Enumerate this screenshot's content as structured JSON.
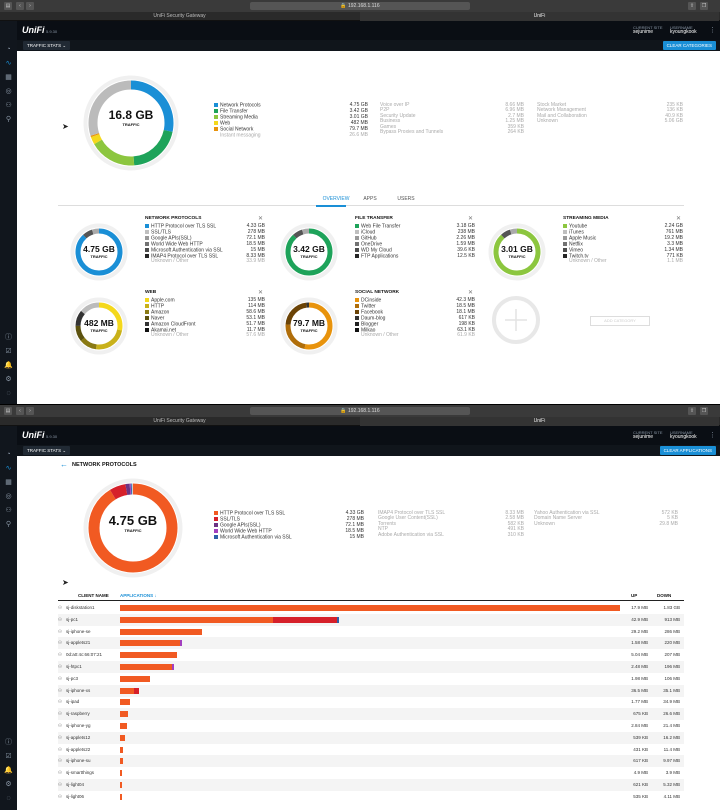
{
  "browser": {
    "address": "192.168.1.116",
    "tabs": [
      "UniFi Security Gateway",
      "UniFi"
    ]
  },
  "app": {
    "brand": "UniFi",
    "version": "5.9.30",
    "current_site_label": "CURRENT SITE",
    "current_site": "sejunime",
    "username_label": "USERNAME",
    "username": "kyoungkook"
  },
  "toolbar": {
    "traffic_stats": "TRAFFIC STATS",
    "clear_categories": "CLEAR CATEGORIES",
    "clear_applications": "CLEAR APPLICATIONS"
  },
  "overview": {
    "total": "16.8 GB",
    "total_label": "TRAFFIC",
    "legend": [
      {
        "name": "Network Protocols",
        "value": "4.75 GB",
        "color": "#1a8fd6"
      },
      {
        "name": "File Transfer",
        "value": "3.42 GB",
        "color": "#1ea35a"
      },
      {
        "name": "Streaming Media",
        "value": "3.01 GB",
        "color": "#8cc63f"
      },
      {
        "name": "Web",
        "value": "482 MB",
        "color": "#f4d81c"
      },
      {
        "name": "Social Network",
        "value": "79.7 MB",
        "color": "#e8930c"
      },
      {
        "name": "Instant messaging",
        "value": "26.6 MB",
        "color": "#bbbbbb"
      }
    ],
    "legend2": [
      {
        "name": "Voice over IP",
        "value": "8.66 MB"
      },
      {
        "name": "P2P",
        "value": "6.96 MB"
      },
      {
        "name": "Security Update",
        "value": "2.7 MB"
      },
      {
        "name": "Business",
        "value": "1.25 MB"
      },
      {
        "name": "Games",
        "value": "359 KB"
      },
      {
        "name": "Bypass Proxies and Tunnels",
        "value": "264 KB"
      }
    ],
    "legend3": [
      {
        "name": "Stock Market",
        "value": "235 KB"
      },
      {
        "name": "Network Management",
        "value": "136 KB"
      },
      {
        "name": "Mail and Collaboration",
        "value": "40.9 KB"
      },
      {
        "name": "Unknown",
        "value": "5.06 GB"
      }
    ],
    "tabs": [
      "OVERVIEW",
      "APPS",
      "USERS"
    ]
  },
  "panels": [
    {
      "title": "NETWORK PROTOCOLS",
      "value": "4.75 GB",
      "label": "TRAFFIC",
      "color": "#1a8fd6",
      "items": [
        [
          "HTTP Protocol over TLS SSL",
          "4.33 GB"
        ],
        [
          "SSL/TLS",
          "278 MB"
        ],
        [
          "Google APIs(SSL)",
          "72.1 MB"
        ],
        [
          "World Wide Web HTTP",
          "18.5 MB"
        ],
        [
          "Microsoft Authentication via SSL",
          "15 MB"
        ],
        [
          "IMAP4 Protocol over TLS SSL",
          "8.33 MB"
        ]
      ],
      "other": [
        "Unknown / Other",
        "33.9 MB"
      ]
    },
    {
      "title": "FILE TRANSFER",
      "value": "3.42 GB",
      "label": "TRAFFIC",
      "color": "#1ea35a",
      "items": [
        [
          "Web File Transfer",
          "3.18 GB"
        ],
        [
          "iCloud",
          "238 MB"
        ],
        [
          "GitHub",
          "2.26 MB"
        ],
        [
          "OneDrive",
          "1.59 MB"
        ],
        [
          "WD My Cloud",
          "39.6 KB"
        ],
        [
          "FTP Applications",
          "12.5 KB"
        ]
      ],
      "other": null
    },
    {
      "title": "STREAMING MEDIA",
      "value": "3.01 GB",
      "label": "TRAFFIC",
      "color": "#8cc63f",
      "items": [
        [
          "Youtube",
          "2.24 GB"
        ],
        [
          "iTunes",
          "761 MB"
        ],
        [
          "Apple Music",
          "19.2 MB"
        ],
        [
          "Netflix",
          "3.3 MB"
        ],
        [
          "Vimeo",
          "1.34 MB"
        ],
        [
          "Twitch.tv",
          "771 KB"
        ]
      ],
      "other": [
        "Unknown / Other",
        "1.1 MB"
      ]
    },
    {
      "title": "WEB",
      "value": "482 MB",
      "label": "TRAFFIC",
      "color": "#f4d81c",
      "items": [
        [
          "Apple.com",
          "135 MB"
        ],
        [
          "HTTP",
          "114 MB"
        ],
        [
          "Amazon",
          "58.6 MB"
        ],
        [
          "Naver",
          "53.1 MB"
        ],
        [
          "Amazon CloudFront",
          "51.7 MB"
        ],
        [
          "Akamai.net",
          "11.7 MB"
        ]
      ],
      "other": [
        "Unknown / Other",
        "57.6 MB"
      ]
    },
    {
      "title": "SOCIAL NETWORK",
      "value": "79.7 MB",
      "label": "TRAFFIC",
      "color": "#e8930c",
      "items": [
        [
          "DCinside",
          "42.3 MB"
        ],
        [
          "Twitter",
          "18.5 MB"
        ],
        [
          "Facebook",
          "18.1 MB"
        ],
        [
          "Daum-blog",
          "617 KB"
        ],
        [
          "Blogger",
          "198 KB"
        ],
        [
          "Milkao",
          "63.1 KB"
        ]
      ],
      "other": [
        "Unknown / Other",
        "61.9 KB"
      ]
    }
  ],
  "add_category": "ADD CATEGORY",
  "detail": {
    "title": "NETWORK PROTOCOLS",
    "total": "4.75 GB",
    "total_label": "TRAFFIC",
    "legend": [
      {
        "name": "HTTP Protocol over TLS SSL",
        "value": "4.33 GB",
        "color": "#f15a22"
      },
      {
        "name": "SSL/TLS",
        "value": "278 MB",
        "color": "#d6202a"
      },
      {
        "name": "Google APIs(SSL)",
        "value": "72.1 MB",
        "color": "#6c3483"
      },
      {
        "name": "World Wide Web HTTP",
        "value": "18.5 MB",
        "color": "#a23fbf"
      },
      {
        "name": "Microsoft Authentication via SSL",
        "value": "15 MB",
        "color": "#2e5fa8"
      }
    ],
    "legend2": [
      {
        "name": "IMAP4 Protocol over TLS SSL",
        "value": "8.33 MB"
      },
      {
        "name": "Google User Content(SSL)",
        "value": "2.58 MB"
      },
      {
        "name": "Torrents",
        "value": "582 KB"
      },
      {
        "name": "NTP",
        "value": "491 KB"
      },
      {
        "name": "Adobe Authentication via SSL",
        "value": "310 KB"
      }
    ],
    "legend3": [
      {
        "name": "Yahoo Authentication via SSL",
        "value": "572 KB"
      },
      {
        "name": "Domain Name Server",
        "value": "5 KB"
      },
      {
        "name": "Unknown",
        "value": "29.8 MB"
      }
    ],
    "columns": {
      "client": "CLIENT NAME",
      "apps": "APPLICATIONS",
      "up": "UP",
      "down": "DOWN"
    },
    "rows": [
      {
        "name": "sj-diskstation1",
        "up": "17.9 MB",
        "down": "1.83 GB",
        "segs": [
          [
            1.83,
            "#f15a22"
          ]
        ]
      },
      {
        "name": "sj-pc1",
        "up": "42.9 MB",
        "down": "913 MB",
        "segs": [
          [
            0.56,
            "#f15a22"
          ],
          [
            0.235,
            "#d6202a"
          ],
          [
            0.005,
            "#2e5fa8"
          ]
        ]
      },
      {
        "name": "sj-iphone-se",
        "up": "29.2 MB",
        "down": "286 MB",
        "segs": [
          [
            0.3,
            "#f15a22"
          ]
        ]
      },
      {
        "name": "sj-applets21",
        "up": "1.58 MB",
        "down": "220 MB",
        "segs": [
          [
            0.218,
            "#f15a22"
          ],
          [
            0.004,
            "#a23fbf"
          ]
        ]
      },
      {
        "name": "0d:a0:4c:66:07:21",
        "up": "5.04 MB",
        "down": "207 MB",
        "segs": [
          [
            0.21,
            "#f15a22"
          ]
        ]
      },
      {
        "name": "sj-htpc1",
        "up": "2.48 MB",
        "down": "196 MB",
        "segs": [
          [
            0.19,
            "#f15a22"
          ],
          [
            0.008,
            "#a23fbf"
          ]
        ]
      },
      {
        "name": "sj-pc3",
        "up": "1.98 MB",
        "down": "106 MB",
        "segs": [
          [
            0.108,
            "#f15a22"
          ]
        ]
      },
      {
        "name": "sj-iphone-xs",
        "up": "36.5 MB",
        "down": "35.1 MB",
        "segs": [
          [
            0.05,
            "#f15a22"
          ],
          [
            0.018,
            "#d6202a"
          ]
        ]
      },
      {
        "name": "sj-ipad",
        "up": "1.77 MB",
        "down": "34.9 MB",
        "segs": [
          [
            0.037,
            "#f15a22"
          ]
        ]
      },
      {
        "name": "sj-raspberry",
        "up": "675 KB",
        "down": "26.6 MB",
        "segs": [
          [
            0.028,
            "#f15a22"
          ]
        ]
      },
      {
        "name": "sj-iphone-yg",
        "up": "2.84 MB",
        "down": "21.4 MB",
        "segs": [
          [
            0.024,
            "#f15a22"
          ]
        ]
      },
      {
        "name": "sj-applets12",
        "up": "539 KB",
        "down": "16.2 MB",
        "segs": [
          [
            0.017,
            "#f15a22"
          ]
        ]
      },
      {
        "name": "sj-applets22",
        "up": "431 KB",
        "down": "11.4 MB",
        "segs": [
          [
            0.012,
            "#f15a22"
          ]
        ]
      },
      {
        "name": "sj-iphone-su",
        "up": "617 KB",
        "down": "9.97 MB",
        "segs": [
          [
            0.011,
            "#f15a22"
          ]
        ]
      },
      {
        "name": "sj-smartthings",
        "up": "4.9 MB",
        "down": "3.9 MB",
        "segs": [
          [
            0.009,
            "#f15a22"
          ]
        ]
      },
      {
        "name": "sj-light04",
        "up": "621 KB",
        "down": "5.32 MB",
        "segs": [
          [
            0.006,
            "#f15a22"
          ]
        ]
      },
      {
        "name": "sj-light06",
        "up": "535 KB",
        "down": "4.11 MB",
        "segs": [
          [
            0.005,
            "#f15a22"
          ]
        ]
      }
    ],
    "max_down": 1.83
  },
  "ring_colors": {
    "overview": [
      [
        0.283,
        "#1a8fd6"
      ],
      [
        0.204,
        "#1ea35a"
      ],
      [
        0.179,
        "#8cc63f"
      ],
      [
        0.029,
        "#f4d81c"
      ],
      [
        0.005,
        "#e8930c"
      ],
      [
        0.3,
        "#bbbbbb"
      ]
    ],
    "detail": [
      [
        0.912,
        "#f15a22"
      ],
      [
        0.059,
        "#d6202a"
      ],
      [
        0.015,
        "#6c3483"
      ],
      [
        0.004,
        "#a23fbf"
      ],
      [
        0.004,
        "#2e5fa8"
      ],
      [
        0.006,
        "#cccccc"
      ]
    ]
  },
  "icons": {
    "nav": [
      "dashboard-icon",
      "stats-icon",
      "map-icon",
      "devices-icon",
      "clients-icon",
      "insights-icon"
    ],
    "nav_bottom": [
      "info-icon",
      "events-icon",
      "alerts-icon",
      "settings-icon"
    ]
  }
}
